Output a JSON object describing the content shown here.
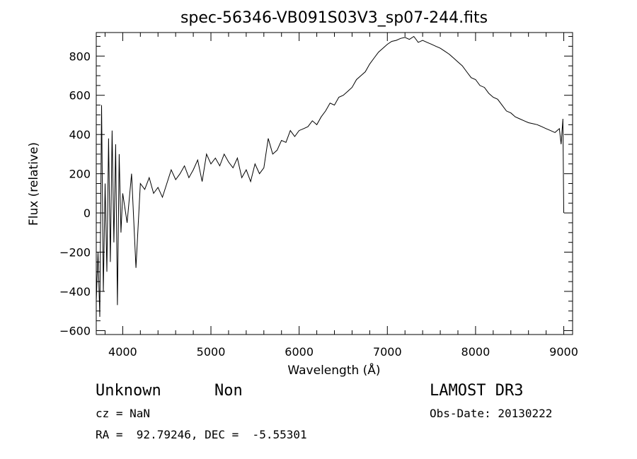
{
  "chart_data": {
    "type": "line",
    "title": "spec-56346-VB091S03V3_sp07-244.fits",
    "xlabel": "Wavelength (Å)",
    "ylabel": "Flux (relative)",
    "xlim": [
      3700,
      9100
    ],
    "ylim": [
      -620,
      920
    ],
    "x_ticks": [
      4000,
      5000,
      6000,
      7000,
      8000,
      9000
    ],
    "y_ticks": [
      -600,
      -400,
      -200,
      0,
      200,
      400,
      600,
      800
    ],
    "x_minor_step": 200,
    "y_minor_step": 50,
    "grid": false,
    "series": [
      {
        "x": [
          3700,
          3720,
          3740,
          3760,
          3780,
          3800,
          3820,
          3840,
          3860,
          3880,
          3900,
          3920,
          3940,
          3960,
          3980,
          4000,
          4050,
          4100,
          4150,
          4200,
          4250,
          4300,
          4350,
          4400,
          4450,
          4500,
          4550,
          4600,
          4650,
          4700,
          4750,
          4800,
          4850,
          4900,
          4950,
          5000,
          5050,
          5100,
          5150,
          5200,
          5250,
          5300,
          5350,
          5400,
          5450,
          5500,
          5550,
          5600,
          5650,
          5700,
          5750,
          5800,
          5850,
          5900,
          5950,
          6000,
          6050,
          6100,
          6150,
          6200,
          6250,
          6300,
          6350,
          6400,
          6450,
          6500,
          6550,
          6600,
          6650,
          6700,
          6750,
          6800,
          6850,
          6900,
          6950,
          7000,
          7050,
          7100,
          7150,
          7200,
          7250,
          7300,
          7350,
          7400,
          7450,
          7500,
          7550,
          7600,
          7650,
          7700,
          7750,
          7800,
          7850,
          7900,
          7950,
          8000,
          8050,
          8100,
          8150,
          8200,
          8250,
          8300,
          8350,
          8400,
          8450,
          8500,
          8550,
          8600,
          8650,
          8700,
          8750,
          8800,
          8850,
          8900,
          8950,
          8970,
          8990,
          9000
        ],
        "y": [
          -450,
          -200,
          -530,
          550,
          -400,
          150,
          -300,
          380,
          -250,
          420,
          -150,
          350,
          -470,
          300,
          -100,
          100,
          -50,
          200,
          -280,
          150,
          120,
          180,
          100,
          130,
          80,
          150,
          220,
          170,
          200,
          240,
          180,
          220,
          270,
          160,
          300,
          250,
          280,
          240,
          300,
          260,
          230,
          280,
          180,
          220,
          160,
          250,
          200,
          230,
          380,
          300,
          320,
          370,
          360,
          420,
          390,
          420,
          430,
          440,
          470,
          450,
          490,
          520,
          560,
          550,
          590,
          600,
          620,
          640,
          680,
          700,
          720,
          760,
          790,
          820,
          840,
          860,
          875,
          880,
          890,
          895,
          885,
          900,
          870,
          880,
          870,
          860,
          850,
          840,
          825,
          810,
          790,
          770,
          750,
          720,
          690,
          680,
          650,
          640,
          610,
          590,
          580,
          550,
          520,
          510,
          490,
          480,
          470,
          460,
          455,
          450,
          440,
          430,
          420,
          410,
          430,
          350,
          480,
          0
        ]
      }
    ],
    "info": {
      "class_label": "Unknown",
      "subclass_label": "Non",
      "survey": "LAMOST DR3",
      "redshift": "cz = NaN",
      "obs_date": "Obs-Date: 20130222",
      "coords": "RA =  92.79246, DEC =  -5.55301"
    }
  }
}
